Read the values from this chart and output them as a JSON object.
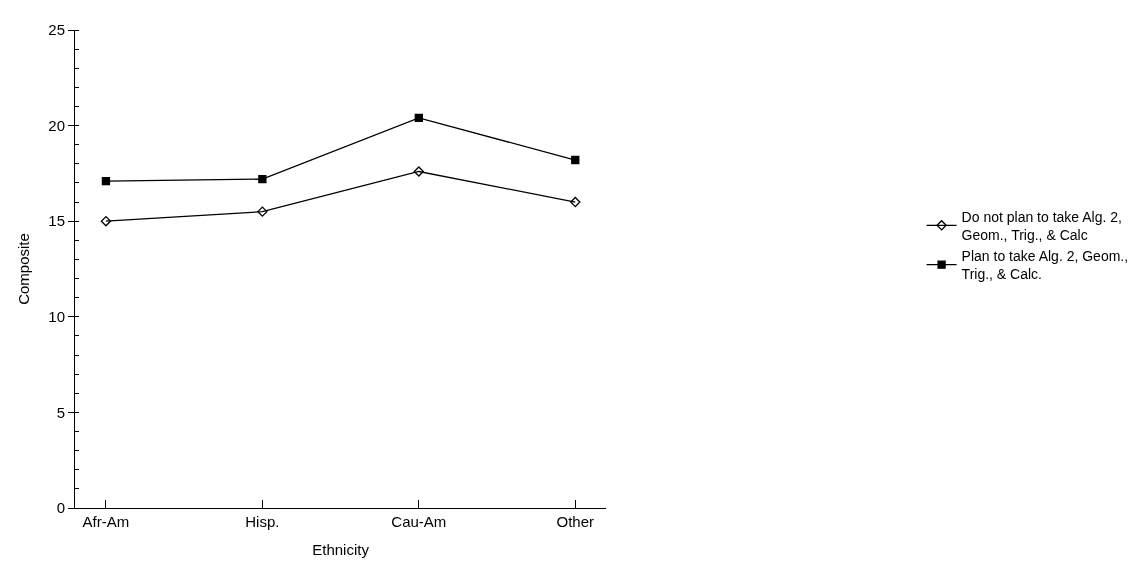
{
  "chart_data": {
    "type": "line",
    "xlabel": "Ethnicity",
    "ylabel": "Composite",
    "categories": [
      "Afr-Am",
      "Hisp.",
      "Cau-Am",
      "Other"
    ],
    "series": [
      {
        "name": "Do not plan to take Alg. 2,\nGeom., Trig., & Calc",
        "color": "#000000",
        "marker": "diamond",
        "values": [
          15.0,
          15.5,
          17.6,
          16.0
        ]
      },
      {
        "name": "Plan to take Alg. 2, Geom.,\nTrig., & Calc.",
        "color": "#000000",
        "marker": "square",
        "values": [
          17.1,
          17.2,
          20.4,
          18.2
        ]
      }
    ],
    "ylim": [
      0,
      25
    ],
    "yticks": [
      0,
      5,
      10,
      15,
      20,
      25
    ],
    "legend": "right",
    "line_style": "solid"
  }
}
